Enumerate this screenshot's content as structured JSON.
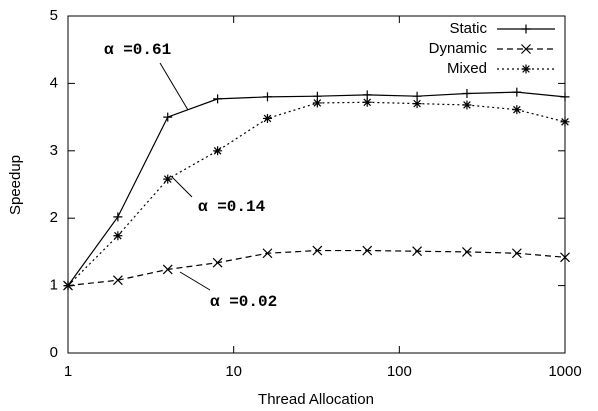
{
  "chart_data": {
    "type": "line",
    "x_label": "Thread Allocation",
    "y_label": "Speedup",
    "x": [
      1,
      2,
      4,
      8,
      16,
      32,
      64,
      128,
      256,
      512,
      1000
    ],
    "xscale": "log",
    "xlim": [
      1,
      1000
    ],
    "xticks": [
      1,
      10,
      100,
      1000
    ],
    "ylim": [
      0,
      5
    ],
    "yticks": [
      0,
      1,
      2,
      3,
      4,
      5
    ],
    "legend": "top-right",
    "series": [
      {
        "name": "Static",
        "color": "#000000",
        "marker": "plus",
        "dash": "none",
        "values": [
          1,
          2.02,
          3.5,
          3.77,
          3.8,
          3.81,
          3.83,
          3.81,
          3.85,
          3.87,
          3.8
        ]
      },
      {
        "name": "Dynamic",
        "color": "#000000",
        "marker": "cross",
        "dash": "6,4",
        "values": [
          1,
          1.08,
          1.24,
          1.34,
          1.48,
          1.52,
          1.52,
          1.51,
          1.5,
          1.48,
          1.42
        ]
      },
      {
        "name": "Mixed",
        "color": "#000000",
        "marker": "star",
        "dash": "2,3",
        "values": [
          1,
          1.74,
          2.58,
          3.0,
          3.48,
          3.71,
          3.72,
          3.7,
          3.68,
          3.61,
          3.43
        ]
      }
    ],
    "annotations": [
      "α =0.61",
      "α =0.14",
      "α =0.02"
    ]
  }
}
